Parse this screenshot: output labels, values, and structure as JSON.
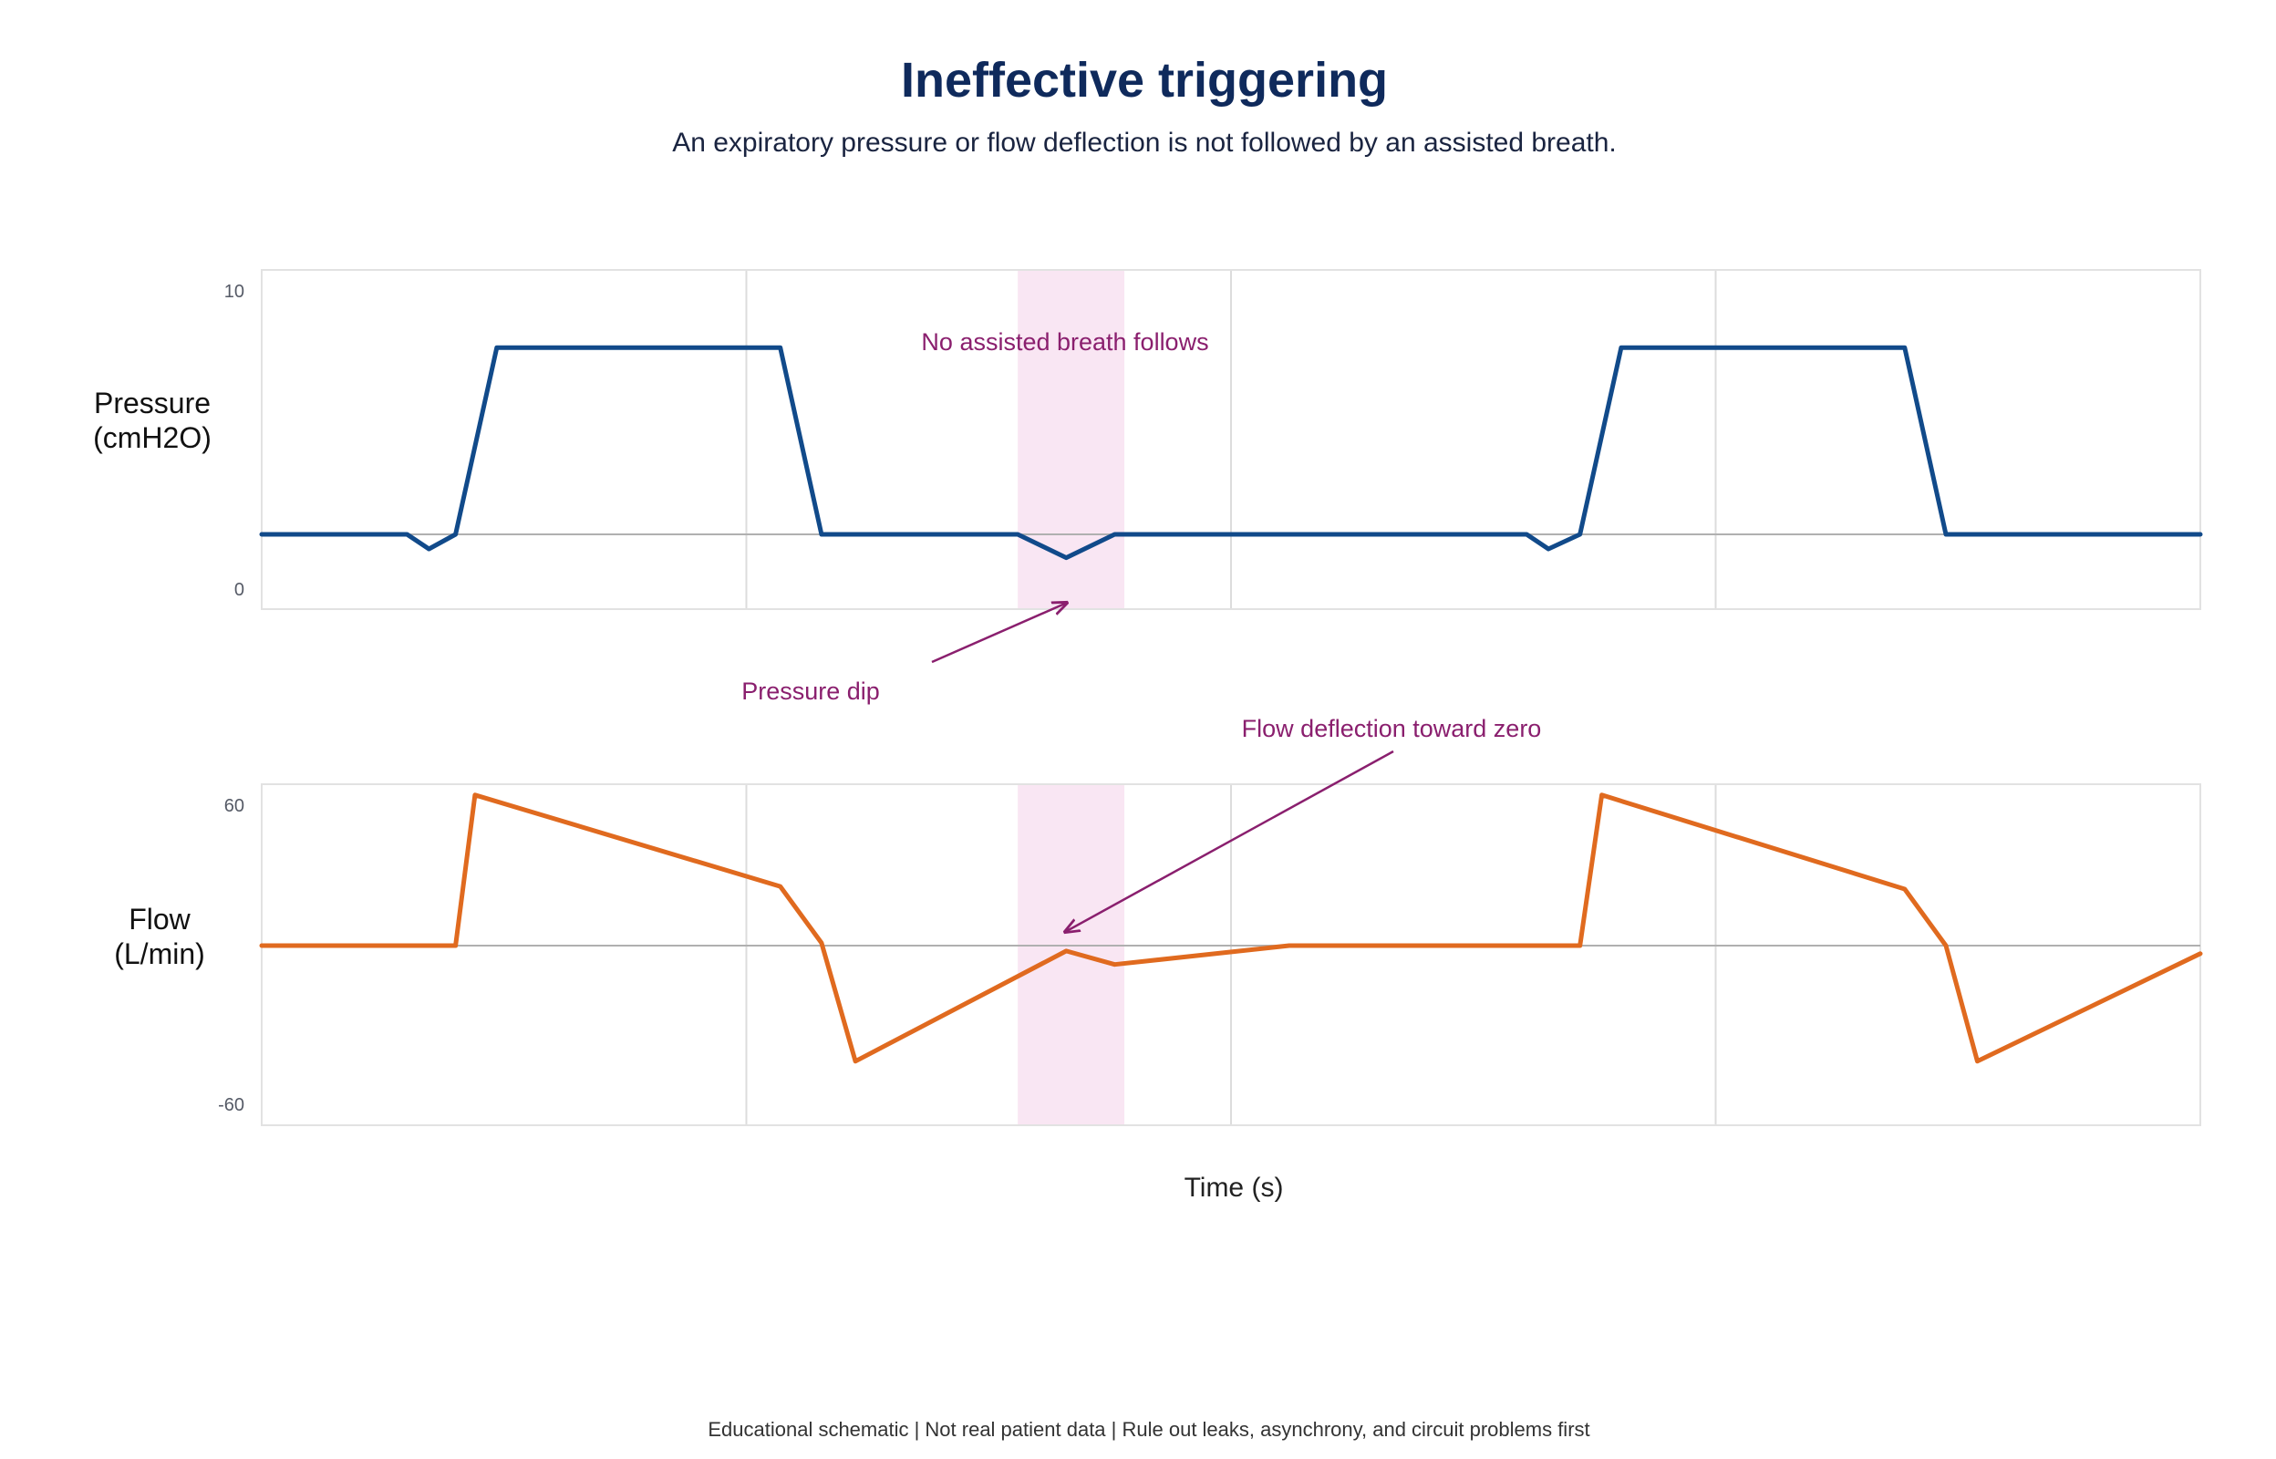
{
  "title": "Ineffective triggering",
  "subtitle": "An expiratory pressure or flow deflection is not followed by an assisted breath.",
  "footer": "Educational schematic | Not real patient data | Rule out leaks, asynchrony, and circuit problems first",
  "colors": {
    "title": "#0f2a5c",
    "pressure": "#114a8a",
    "flow": "#e06a1f",
    "annotation": "#8a1f6e",
    "highlight": "#f9e6f3",
    "grid": "#dcdcdc",
    "baseline": "#b0b0b0"
  },
  "chart_data": [
    {
      "type": "line",
      "ylabel": "Pressure\n(cmH2O)",
      "xlabel": "",
      "ylim": [
        0,
        10
      ],
      "y_ticks": [
        "10",
        "0"
      ],
      "xlim": [
        0,
        4
      ],
      "grid": true,
      "baseline": 2,
      "series": [
        {
          "x": [
            0,
            0.3,
            0.345,
            0.4,
            0.485,
            1.07,
            1.155,
            1.56,
            1.66,
            1.76,
            2.61,
            2.655,
            2.72,
            2.805,
            3.39,
            3.475,
            4.0
          ],
          "values": [
            2,
            2,
            1.5,
            2,
            8.4,
            8.4,
            2,
            2,
            1.2,
            2,
            2,
            1.5,
            2,
            8.4,
            8.4,
            2,
            2
          ]
        }
      ],
      "highlight": [
        1.56,
        1.78
      ],
      "annotations": [
        {
          "text": "No assisted breath follows"
        },
        {
          "text": "Pressure dip"
        }
      ]
    },
    {
      "type": "line",
      "ylabel": "Flow\n(L/min)",
      "xlabel": "Time (s)",
      "ylim": [
        -60,
        60
      ],
      "y_ticks": [
        "60",
        "-60"
      ],
      "xlim": [
        0,
        4
      ],
      "grid": true,
      "baseline": 0,
      "series": [
        {
          "x": [
            0,
            0.4,
            0.44,
            1.07,
            1.155,
            1.225,
            1.66,
            1.76,
            2.12,
            2.72,
            2.765,
            3.39,
            3.475,
            3.54,
            4.0
          ],
          "values": [
            0,
            0,
            56,
            22,
            1,
            -43,
            -2,
            -7,
            0,
            0,
            56,
            21,
            0,
            -43,
            -3
          ]
        }
      ],
      "highlight": [
        1.56,
        1.78
      ],
      "annotations": [
        {
          "text": "Flow deflection toward zero"
        }
      ]
    }
  ]
}
